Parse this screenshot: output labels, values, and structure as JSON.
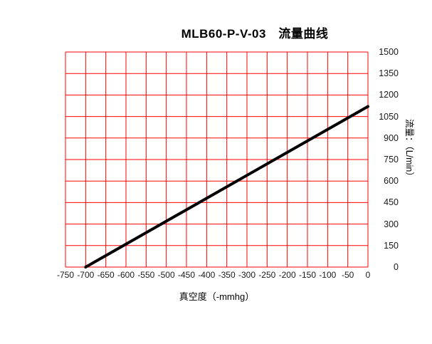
{
  "chart_data": {
    "type": "line",
    "title": "MLB60-P-V-03　流量曲线",
    "xlabel": "真空度（-mmhg）",
    "ylabel": "流量：（L/min）",
    "xlim": [
      -750,
      0
    ],
    "ylim": [
      0,
      1500
    ],
    "x_ticks": [
      -750,
      -700,
      -650,
      -600,
      -550,
      -500,
      -450,
      -400,
      -350,
      -300,
      -250,
      -200,
      -150,
      -100,
      -50,
      0
    ],
    "y_ticks": [
      0,
      150,
      300,
      450,
      600,
      750,
      900,
      1050,
      1200,
      1350,
      1500
    ],
    "grid": true,
    "grid_color": "#ff0000",
    "background_color": "#ffffff",
    "legend": "none",
    "series": [
      {
        "name": "流量曲线",
        "color": "#000000",
        "line_width": 4,
        "points": [
          [
            -700,
            0
          ],
          [
            0,
            1120
          ]
        ]
      }
    ]
  }
}
